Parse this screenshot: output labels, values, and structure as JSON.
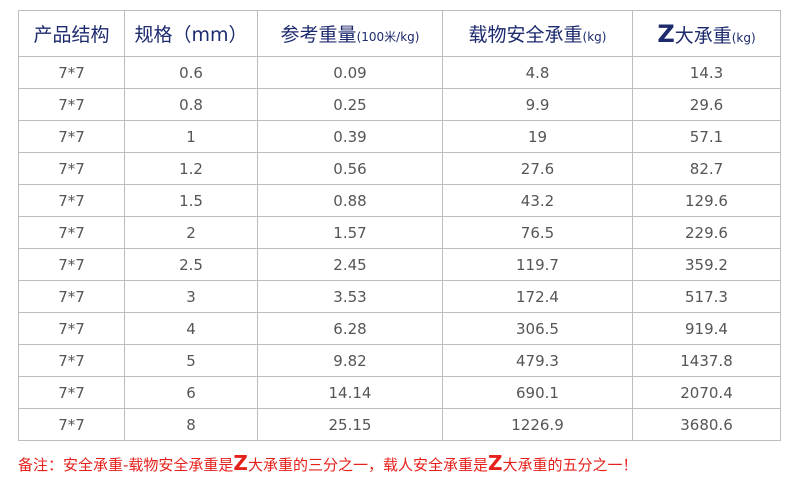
{
  "table": {
    "header": [
      {
        "parts": [
          "产品结构"
        ]
      },
      {
        "parts": [
          "规格（mm）"
        ]
      },
      {
        "parts": [
          "参考重量"
        ],
        "small": "(100米/kg)"
      },
      {
        "parts": [
          "载物安全承重"
        ],
        "small": "(kg)"
      },
      {
        "big": "Z",
        "parts": [
          "大承重"
        ],
        "small": "(kg)"
      }
    ],
    "rows": [
      [
        "7*7",
        "0.6",
        "0.09",
        "4.8",
        "14.3"
      ],
      [
        "7*7",
        "0.8",
        "0.25",
        "9.9",
        "29.6"
      ],
      [
        "7*7",
        "1",
        "0.39",
        "19",
        "57.1"
      ],
      [
        "7*7",
        "1.2",
        "0.56",
        "27.6",
        "82.7"
      ],
      [
        "7*7",
        "1.5",
        "0.88",
        "43.2",
        "129.6"
      ],
      [
        "7*7",
        "2",
        "1.57",
        "76.5",
        "229.6"
      ],
      [
        "7*7",
        "2.5",
        "2.45",
        "119.7",
        "359.2"
      ],
      [
        "7*7",
        "3",
        "3.53",
        "172.4",
        "517.3"
      ],
      [
        "7*7",
        "4",
        "6.28",
        "306.5",
        "919.4"
      ],
      [
        "7*7",
        "5",
        "9.82",
        "479.3",
        "1437.8"
      ],
      [
        "7*7",
        "6",
        "14.14",
        "690.1",
        "2070.4"
      ],
      [
        "7*7",
        "8",
        "25.15",
        "1226.9",
        "3680.6"
      ]
    ]
  },
  "note": [
    "备注：安全承重-载物安全承重是",
    "Z",
    "大承重的三分之一，载人安全承重是",
    "Z",
    "大承重的五分之一！"
  ]
}
